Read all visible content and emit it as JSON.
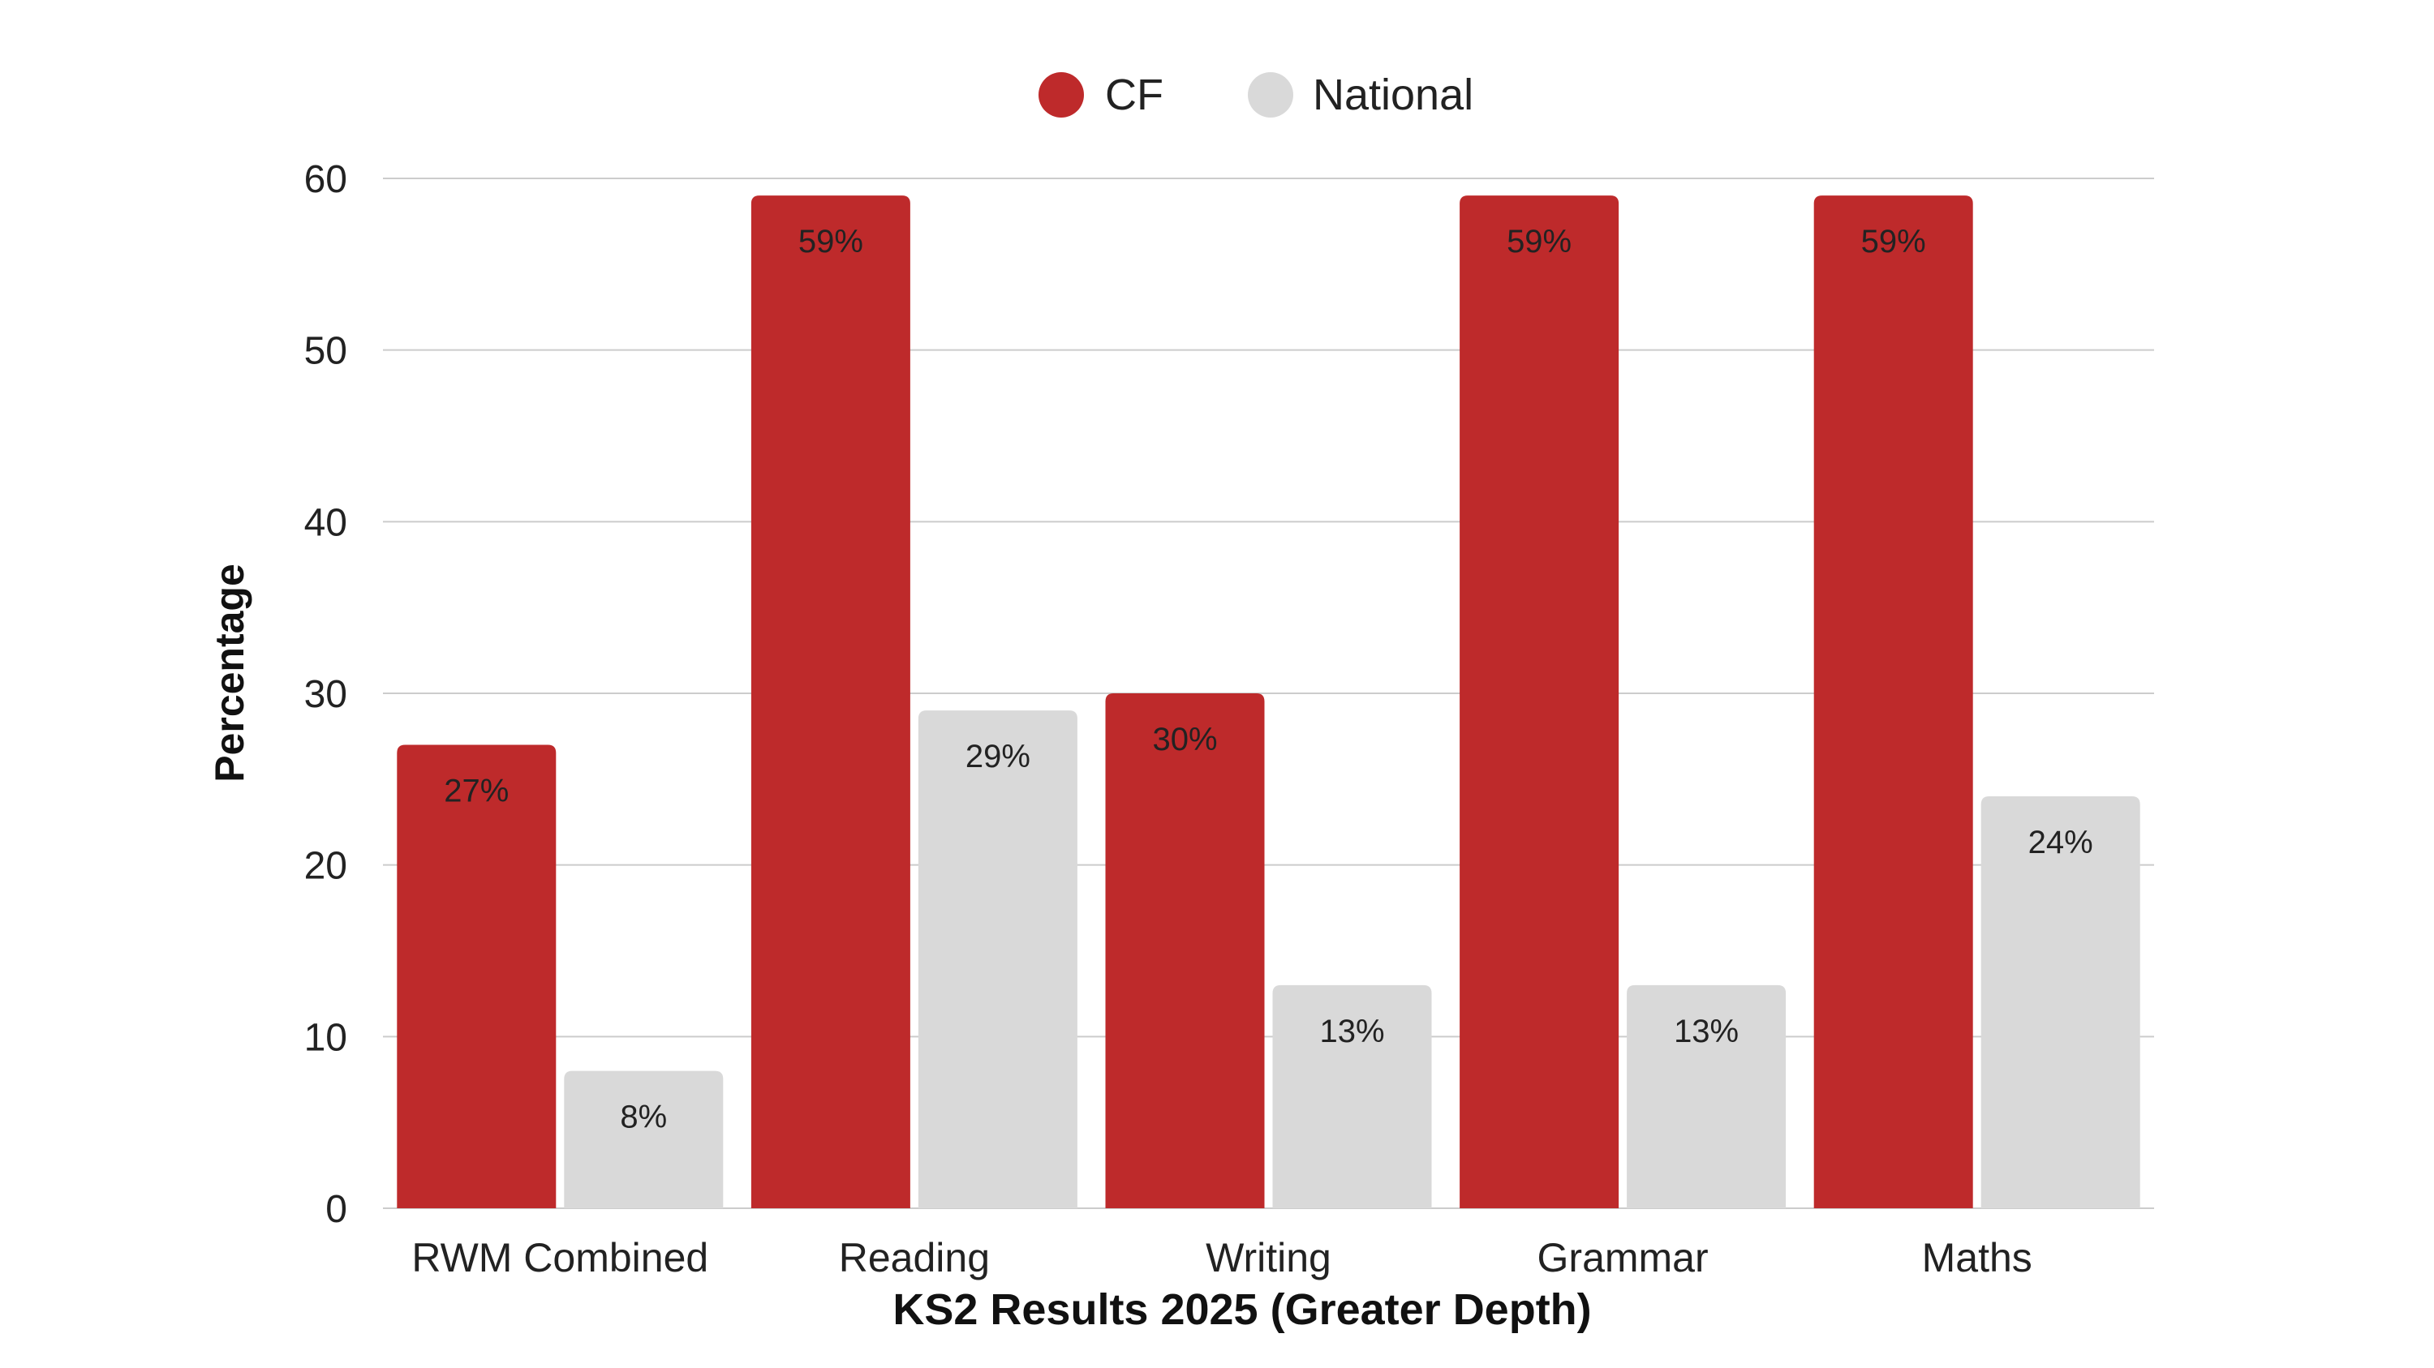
{
  "chart_data": {
    "type": "bar",
    "title": "",
    "xlabel": "KS2 Results 2025 (Greater Depth)",
    "ylabel": "Percentage",
    "ylim": [
      0,
      60
    ],
    "yticks": [
      0,
      10,
      20,
      30,
      40,
      50,
      60
    ],
    "grid": true,
    "legend_position": "top-center",
    "categories": [
      "RWM Combined",
      "Reading",
      "Writing",
      "Grammar",
      "Maths"
    ],
    "series": [
      {
        "name": "CF",
        "color": "#be2a2b",
        "values": [
          27,
          59,
          30,
          59,
          59
        ],
        "labels": [
          "27%",
          "59%",
          "30%",
          "59%",
          "59%"
        ]
      },
      {
        "name": "National",
        "color": "#d9d9d9",
        "values": [
          8,
          29,
          13,
          13,
          24
        ],
        "labels": [
          "8%",
          "29%",
          "13%",
          "13%",
          "24%"
        ]
      }
    ]
  }
}
